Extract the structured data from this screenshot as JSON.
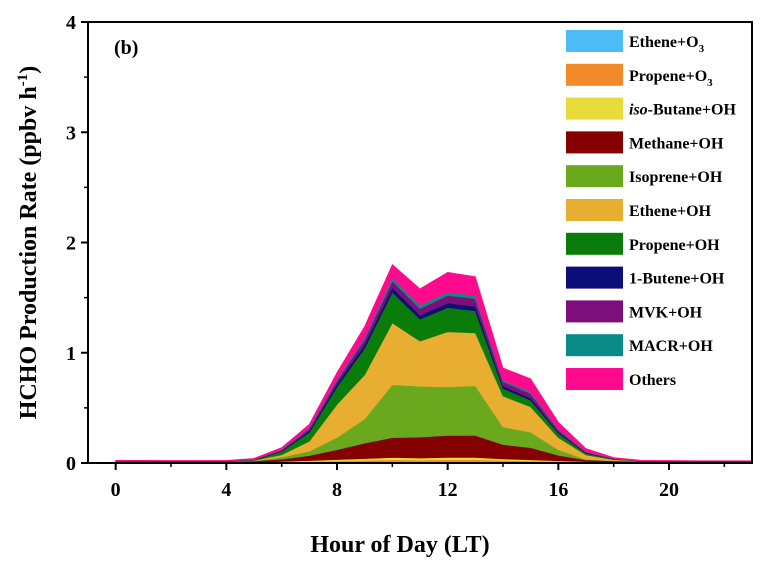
{
  "chart_data": {
    "type": "area",
    "stacked": true,
    "title": "",
    "panel_label": "(b)",
    "xlabel": "Hour of Day (LT)",
    "ylabel_main": "HCHO Production Rate (ppbv h",
    "ylabel_sup": "-1",
    "ylabel_close": ")",
    "xlim": [
      -1,
      23
    ],
    "ylim": [
      0,
      4
    ],
    "x_ticks": [
      0,
      4,
      8,
      12,
      16,
      20
    ],
    "y_ticks": [
      0,
      1,
      2,
      3,
      4
    ],
    "grid": false,
    "legend_position": "top-right",
    "x": [
      0,
      1,
      2,
      3,
      4,
      5,
      6,
      7,
      8,
      9,
      10,
      11,
      12,
      13,
      14,
      15,
      16,
      17,
      18,
      19,
      20,
      21,
      22,
      23
    ],
    "series": [
      {
        "name": "Ethene+O",
        "sub": "3",
        "color": "#4dbbf5",
        "values": [
          0.004,
          0.004,
          0.004,
          0.004,
          0.004,
          0.004,
          0.005,
          0.006,
          0.007,
          0.008,
          0.01,
          0.009,
          0.01,
          0.01,
          0.008,
          0.007,
          0.006,
          0.005,
          0.004,
          0.004,
          0.004,
          0.004,
          0.004,
          0.004
        ]
      },
      {
        "name": "Propene+O",
        "sub": "3",
        "color": "#f28a2a",
        "values": [
          0.003,
          0.003,
          0.003,
          0.003,
          0.003,
          0.003,
          0.005,
          0.008,
          0.012,
          0.016,
          0.02,
          0.018,
          0.02,
          0.02,
          0.015,
          0.012,
          0.008,
          0.005,
          0.004,
          0.003,
          0.003,
          0.003,
          0.003,
          0.003
        ]
      },
      {
        "name_italic": "iso",
        "name": "-Butane+OH",
        "color": "#e8dc3a",
        "values": [
          0.002,
          0.002,
          0.002,
          0.002,
          0.002,
          0.002,
          0.004,
          0.008,
          0.012,
          0.016,
          0.02,
          0.018,
          0.02,
          0.02,
          0.014,
          0.01,
          0.006,
          0.003,
          0.002,
          0.002,
          0.002,
          0.002,
          0.002,
          0.002
        ]
      },
      {
        "name": "Methane+OH",
        "color": "#850000",
        "values": [
          0.008,
          0.008,
          0.008,
          0.008,
          0.008,
          0.01,
          0.02,
          0.045,
          0.09,
          0.14,
          0.18,
          0.19,
          0.2,
          0.2,
          0.13,
          0.11,
          0.05,
          0.015,
          0.01,
          0.008,
          0.008,
          0.008,
          0.008,
          0.008
        ]
      },
      {
        "name": "Isoprene+OH",
        "color": "#6aa81e",
        "values": [
          0.0,
          0.0,
          0.0,
          0.0,
          0.0,
          0.0,
          0.02,
          0.04,
          0.11,
          0.22,
          0.48,
          0.46,
          0.44,
          0.45,
          0.16,
          0.14,
          0.05,
          0.005,
          0.0,
          0.0,
          0.0,
          0.0,
          0.0,
          0.0
        ]
      },
      {
        "name": "Ethene+OH",
        "color": "#e8ae32",
        "values": [
          0.0,
          0.0,
          0.0,
          0.0,
          0.0,
          0.004,
          0.02,
          0.09,
          0.3,
          0.4,
          0.56,
          0.41,
          0.5,
          0.48,
          0.28,
          0.23,
          0.11,
          0.04,
          0.01,
          0.0,
          0.0,
          0.0,
          0.0,
          0.0
        ]
      },
      {
        "name": "Propene+OH",
        "color": "#0a7c0a",
        "values": [
          0.0,
          0.0,
          0.0,
          0.0,
          0.0,
          0.004,
          0.03,
          0.08,
          0.16,
          0.24,
          0.28,
          0.2,
          0.22,
          0.2,
          0.07,
          0.06,
          0.04,
          0.015,
          0.005,
          0.0,
          0.0,
          0.0,
          0.0,
          0.0
        ]
      },
      {
        "name": "1-Butene+OH",
        "color": "#0c0c7a",
        "values": [
          0.0,
          0.0,
          0.0,
          0.0,
          0.0,
          0.002,
          0.006,
          0.015,
          0.025,
          0.035,
          0.04,
          0.035,
          0.04,
          0.04,
          0.02,
          0.02,
          0.01,
          0.005,
          0.002,
          0.0,
          0.0,
          0.0,
          0.0,
          0.0
        ]
      },
      {
        "name": "MVK+OH",
        "color": "#7d0f7d",
        "values": [
          0.0,
          0.0,
          0.0,
          0.0,
          0.0,
          0.002,
          0.008,
          0.02,
          0.03,
          0.045,
          0.06,
          0.06,
          0.07,
          0.07,
          0.04,
          0.04,
          0.02,
          0.005,
          0.002,
          0.0,
          0.0,
          0.0,
          0.0,
          0.0
        ]
      },
      {
        "name": "MACR+OH",
        "color": "#0b8a8a",
        "values": [
          0.0,
          0.0,
          0.0,
          0.0,
          0.0,
          0.001,
          0.004,
          0.01,
          0.015,
          0.02,
          0.03,
          0.03,
          0.03,
          0.03,
          0.015,
          0.015,
          0.01,
          0.003,
          0.001,
          0.0,
          0.0,
          0.0,
          0.0,
          0.0
        ]
      },
      {
        "name": "Others",
        "color": "#ff0a8c",
        "values": [
          0.008,
          0.008,
          0.006,
          0.006,
          0.008,
          0.01,
          0.018,
          0.03,
          0.06,
          0.1,
          0.12,
          0.15,
          0.18,
          0.17,
          0.11,
          0.12,
          0.06,
          0.03,
          0.01,
          0.008,
          0.006,
          0.004,
          0.004,
          0.004
        ]
      }
    ]
  }
}
